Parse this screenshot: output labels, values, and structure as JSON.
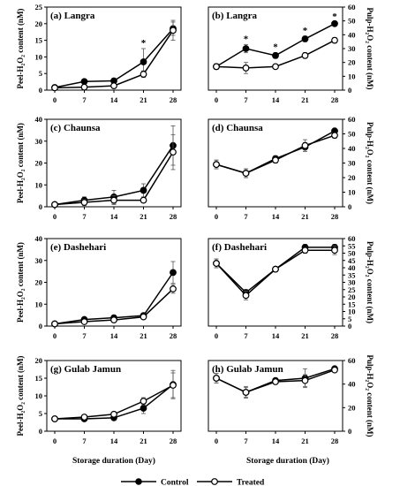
{
  "figure": {
    "xlabel": "Storage duration (Day)",
    "legend": {
      "control_label": "Control",
      "treated_label": "Treated"
    }
  },
  "chart_data": [
    {
      "id": "a",
      "type": "line",
      "title": "(a) Langra",
      "side": "left",
      "ylabel": "Peel-H₂O₂ content (nM)",
      "x": [
        0,
        7,
        14,
        21,
        28
      ],
      "xlim": [
        0,
        28
      ],
      "ylim": [
        0,
        25
      ],
      "yticks": [
        0,
        5,
        10,
        15,
        20,
        25
      ],
      "series": [
        {
          "name": "Control",
          "values": [
            0.8,
            2.6,
            2.8,
            8.5,
            18.5
          ],
          "err": [
            0.3,
            0.5,
            0.5,
            4,
            2
          ]
        },
        {
          "name": "Treated",
          "values": [
            0.7,
            0.9,
            1.3,
            4.8,
            18.0
          ],
          "err": [
            0.3,
            0.3,
            0.4,
            1,
            3
          ]
        }
      ],
      "annotations": [
        {
          "x": 21,
          "label": "*"
        }
      ]
    },
    {
      "id": "b",
      "type": "line",
      "title": "(b) Langra",
      "side": "right",
      "ylabel": "Pulp-H₂O₂ content (nM)",
      "x": [
        0,
        7,
        14,
        21,
        28
      ],
      "xlim": [
        0,
        28
      ],
      "ylim": [
        0,
        60
      ],
      "yticks": [
        0,
        10,
        20,
        30,
        40,
        50,
        60
      ],
      "series": [
        {
          "name": "Control",
          "values": [
            17,
            30,
            25,
            37,
            48
          ],
          "err": [
            2,
            3,
            2,
            2,
            1
          ]
        },
        {
          "name": "Treated",
          "values": [
            17,
            16,
            17,
            25,
            36
          ],
          "err": [
            2,
            4,
            1,
            2,
            2
          ]
        }
      ],
      "annotations": [
        {
          "x": 7,
          "label": "*"
        },
        {
          "x": 14,
          "label": "*"
        },
        {
          "x": 21,
          "label": "*"
        },
        {
          "x": 28,
          "label": "*"
        }
      ]
    },
    {
      "id": "c",
      "type": "line",
      "title": "(c) Chaunsa",
      "side": "left",
      "ylabel": "Peel-H₂O₂ content (nM)",
      "x": [
        0,
        7,
        14,
        21,
        28
      ],
      "xlim": [
        0,
        28
      ],
      "ylim": [
        0,
        40
      ],
      "yticks": [
        0,
        10,
        20,
        30,
        40
      ],
      "series": [
        {
          "name": "Control",
          "values": [
            1,
            3,
            4.5,
            7.5,
            28
          ],
          "err": [
            0.3,
            1.5,
            3,
            3,
            9
          ]
        },
        {
          "name": "Treated",
          "values": [
            1,
            2,
            3,
            3,
            25
          ],
          "err": [
            0.3,
            1.5,
            2,
            1,
            8
          ]
        }
      ],
      "annotations": []
    },
    {
      "id": "d",
      "type": "line",
      "title": "(d) Chaunsa",
      "side": "right",
      "ylabel": "Pulp-H₂O₂ content (nM)",
      "x": [
        0,
        7,
        14,
        21,
        28
      ],
      "xlim": [
        0,
        28
      ],
      "ylim": [
        0,
        60
      ],
      "yticks": [
        0,
        10,
        20,
        30,
        40,
        50,
        60
      ],
      "series": [
        {
          "name": "Control",
          "values": [
            29,
            23,
            33,
            41,
            52
          ],
          "err": [
            3,
            3,
            2,
            3,
            1
          ]
        },
        {
          "name": "Treated",
          "values": [
            29,
            23,
            32,
            42,
            49
          ],
          "err": [
            3,
            3,
            2,
            4,
            2
          ]
        }
      ],
      "annotations": []
    },
    {
      "id": "e",
      "type": "line",
      "title": "(e) Dashehari",
      "side": "left",
      "ylabel": "Peel-H₂O₂ content (nM)",
      "x": [
        0,
        7,
        14,
        21,
        28
      ],
      "xlim": [
        0,
        28
      ],
      "ylim": [
        0,
        40
      ],
      "yticks": [
        0,
        10,
        20,
        30,
        40
      ],
      "series": [
        {
          "name": "Control",
          "values": [
            1,
            3,
            3.8,
            4.8,
            24.5
          ],
          "err": [
            0.3,
            0.8,
            0.8,
            1,
            5
          ]
        },
        {
          "name": "Treated",
          "values": [
            1,
            2,
            2.8,
            4.2,
            17
          ],
          "err": [
            0.3,
            0.6,
            0.8,
            1,
            2
          ]
        }
      ],
      "annotations": []
    },
    {
      "id": "f",
      "type": "line",
      "title": "(f) Dashehari",
      "side": "right",
      "ylabel": "Pulp-H₂O₂ content (nM)",
      "x": [
        0,
        7,
        14,
        21,
        28
      ],
      "xlim": [
        0,
        28
      ],
      "ylim": [
        0,
        60
      ],
      "yticks": [
        0,
        5,
        10,
        15,
        20,
        25,
        30,
        35,
        40,
        45,
        50,
        55,
        60
      ],
      "series": [
        {
          "name": "Control",
          "values": [
            43,
            23,
            39,
            54,
            54
          ],
          "err": [
            3,
            2,
            1,
            2,
            2
          ]
        },
        {
          "name": "Treated",
          "values": [
            43,
            21,
            39,
            52,
            52
          ],
          "err": [
            3,
            3,
            1,
            2,
            3
          ]
        }
      ],
      "annotations": []
    },
    {
      "id": "g",
      "type": "line",
      "title": "(g) Gulab Jamun",
      "side": "left",
      "ylabel": "Peel-H₂O₂ content (nM)",
      "x": [
        0,
        7,
        14,
        21,
        28
      ],
      "xlim": [
        0,
        28
      ],
      "ylim": [
        0,
        20
      ],
      "yticks": [
        0,
        5,
        10,
        15,
        20
      ],
      "series": [
        {
          "name": "Control",
          "values": [
            3.5,
            3.5,
            3.8,
            6.5,
            13.2
          ],
          "err": [
            0.2,
            0.3,
            0.4,
            1.5,
            4
          ]
        },
        {
          "name": "Treated",
          "values": [
            3.5,
            4.0,
            4.8,
            8.5,
            13.0
          ],
          "err": [
            0.2,
            0.3,
            0.4,
            1,
            3.5
          ]
        }
      ],
      "annotations": []
    },
    {
      "id": "h",
      "type": "line",
      "title": "(h) Gulab Jamun",
      "side": "right",
      "ylabel": "Pulp-H₂O₂ content (nM)",
      "x": [
        0,
        7,
        14,
        21,
        28
      ],
      "xlim": [
        0,
        28
      ],
      "ylim": [
        0,
        60
      ],
      "yticks": [
        0,
        20,
        40,
        60
      ],
      "series": [
        {
          "name": "Control",
          "values": [
            45,
            33,
            43,
            45,
            53
          ],
          "err": [
            4,
            5,
            2,
            8,
            1
          ]
        },
        {
          "name": "Treated",
          "values": [
            45,
            33,
            42,
            43,
            52
          ],
          "err": [
            4,
            4,
            2,
            5,
            1
          ]
        }
      ],
      "annotations": []
    }
  ]
}
